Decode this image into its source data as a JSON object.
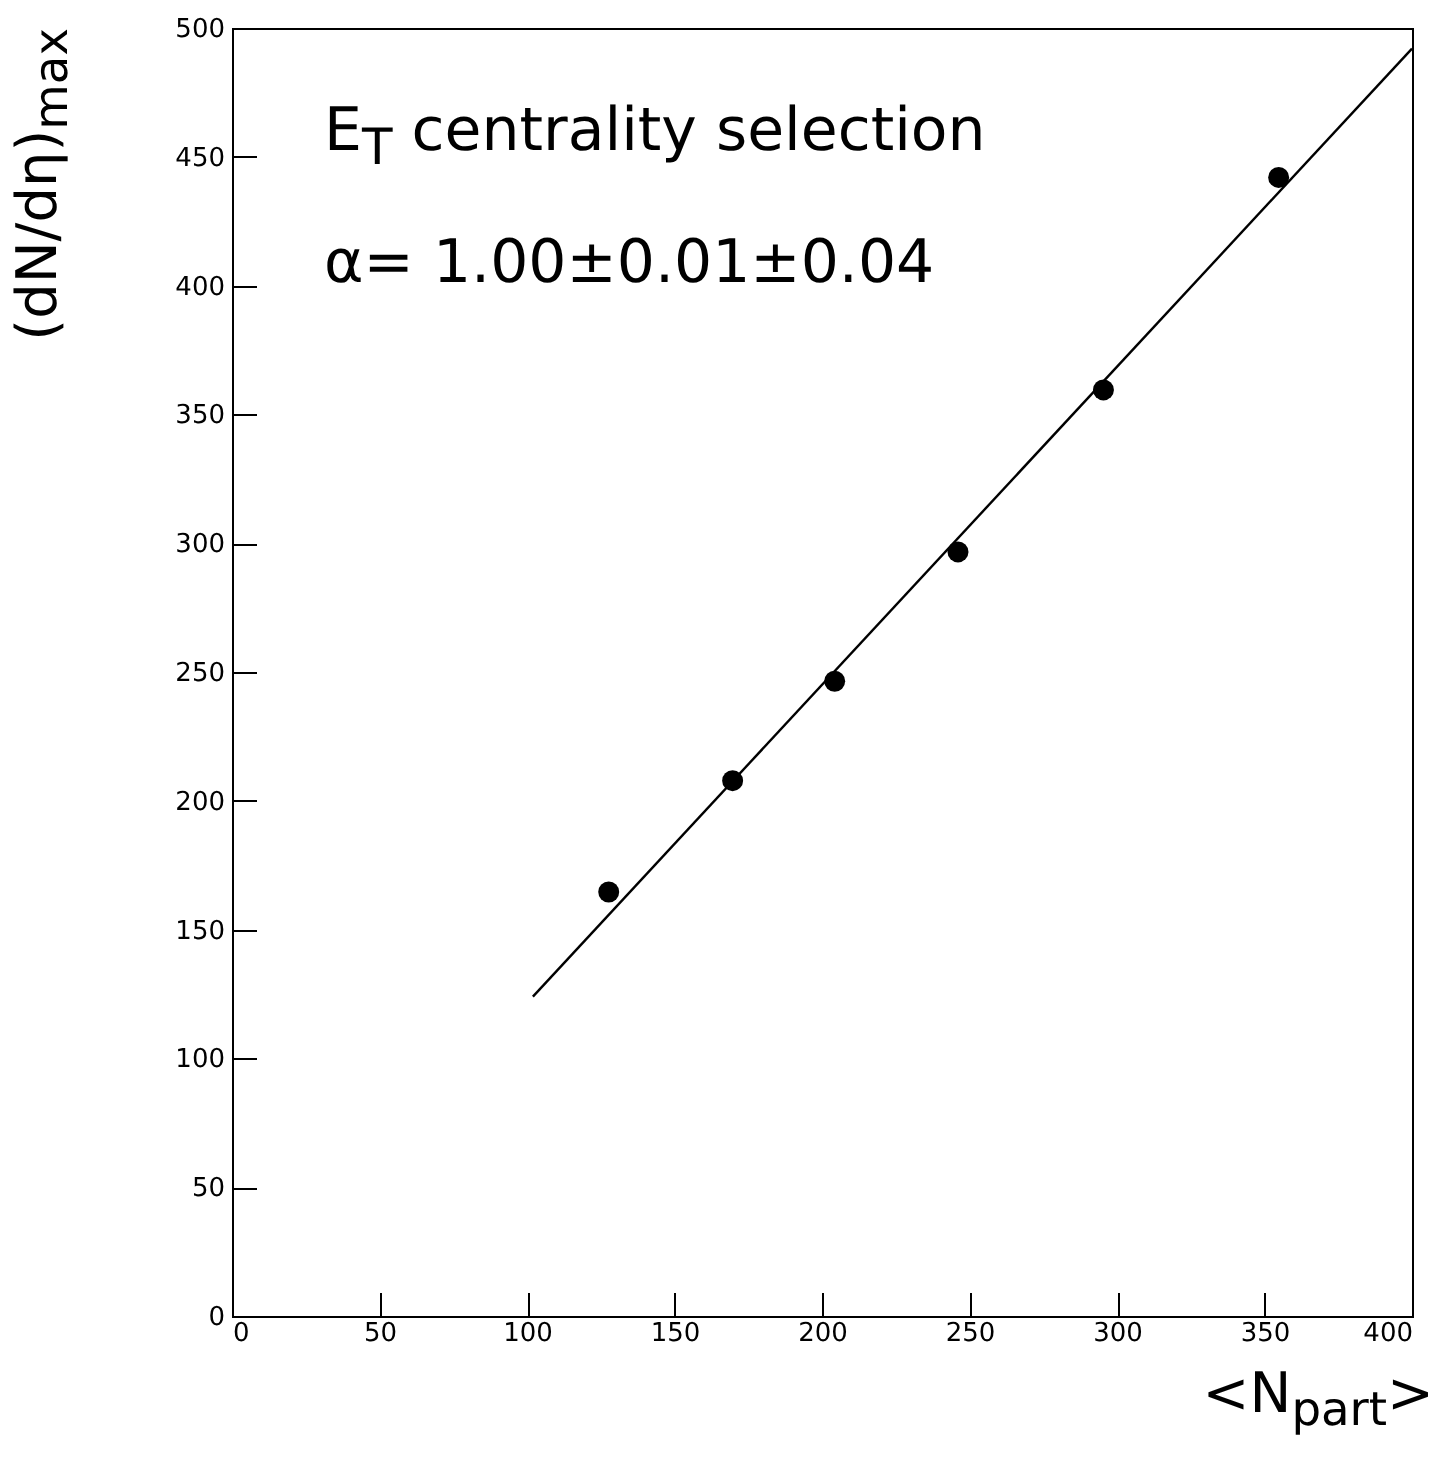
{
  "chart_data": {
    "type": "scatter",
    "xlabel": "<N$_{part}$>",
    "ylabel": "(dN/dη)$_{max}$",
    "annotations": [
      "E$_{T}$ centrality selection",
      "α= 1.00±0.01±0.04"
    ],
    "series": [
      {
        "color": "#000000",
        "marker": "circle",
        "x": [
          127.7,
          169.7,
          204.3,
          246.1,
          295.4,
          354.8
        ],
        "values": [
          164.6,
          207.8,
          246.4,
          296.6,
          359.5,
          442
        ]
      },
      {
        "type": "line",
        "marker": "none",
        "color": "#000000",
        "x": [
          102,
          400
        ],
        "values": [
          124,
          492
        ]
      }
    ],
    "xlim": [
      0,
      400
    ],
    "ylim": [
      0,
      500
    ],
    "xticks": [
      0,
      50,
      100,
      150,
      200,
      250,
      300,
      350,
      400
    ],
    "yticks": [
      0,
      50,
      100,
      150,
      200,
      250,
      300,
      350,
      400,
      450,
      500
    ],
    "line_style": "solid",
    "grid": false
  }
}
